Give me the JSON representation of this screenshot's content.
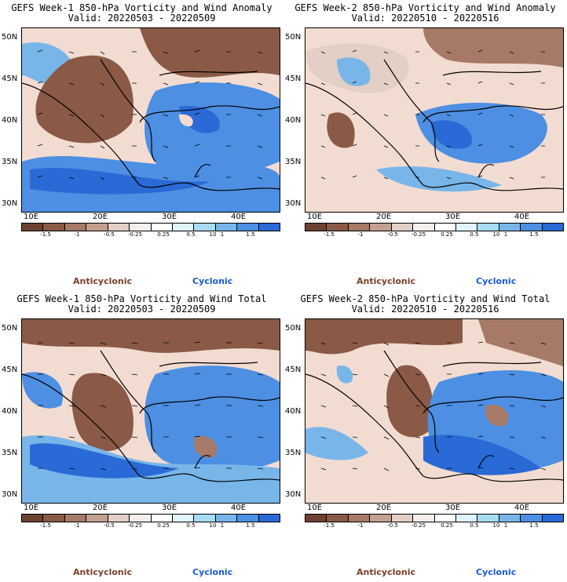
{
  "panels": [
    {
      "title_line1": "GEFS Week-1 850-hPa Vorticity and Wind Anomaly",
      "title_line2": "Valid: 20220503 - 20220509",
      "legend_anticyclonic": "Anticyclonic",
      "legend_cyclonic": "Cyclonic"
    },
    {
      "title_line1": "GEFS Week-2 850-hPa Vorticity and Wind Anomaly",
      "title_line2": "Valid: 20220510 - 20220516",
      "legend_anticyclonic": "Anticyclonic",
      "legend_cyclonic": "Cyclonic"
    },
    {
      "title_line1": "GEFS Week-1 850-hPa Vorticity and Wind Total",
      "title_line2": "Valid: 20220503 - 20220509",
      "legend_anticyclonic": "Anticyclonic",
      "legend_cyclonic": "Cyclonic"
    },
    {
      "title_line1": "GEFS Week-2 850-hPa Vorticity and Wind Total",
      "title_line2": "Valid: 20220510 - 20220516",
      "legend_anticyclonic": "Anticyclonic",
      "legend_cyclonic": "Cyclonic"
    }
  ],
  "latitude_labels": [
    "50N",
    "45N",
    "40N",
    "35N",
    "30N"
  ],
  "longitude_labels": [
    "10E",
    "20E",
    "30E",
    "40E"
  ],
  "colorbar": {
    "tick_labels": [
      "-1.5",
      "-1",
      "-0.5",
      "-0.25",
      "0.25",
      "0.5",
      "1",
      "1.5"
    ],
    "extra_label": "10",
    "colors": [
      "#6e4233",
      "#8a5a47",
      "#a67a66",
      "#c4a090",
      "#e3cfc5",
      "#f7efeb",
      "#ffffff",
      "#dff4fb",
      "#a8dcf3",
      "#78b6ea",
      "#4d8fe2",
      "#2a6ad6"
    ]
  },
  "palette": {
    "cyclonic_strong": "#2a6ad6",
    "cyclonic_mid": "#4d8fe2",
    "cyclonic_weak": "#78b6ea",
    "anticyclonic_strong": "#6e4233",
    "anticyclonic_mid": "#8a5a47",
    "anticyclonic_weak": "#a67a66",
    "neutral": "#f2dcd2"
  }
}
